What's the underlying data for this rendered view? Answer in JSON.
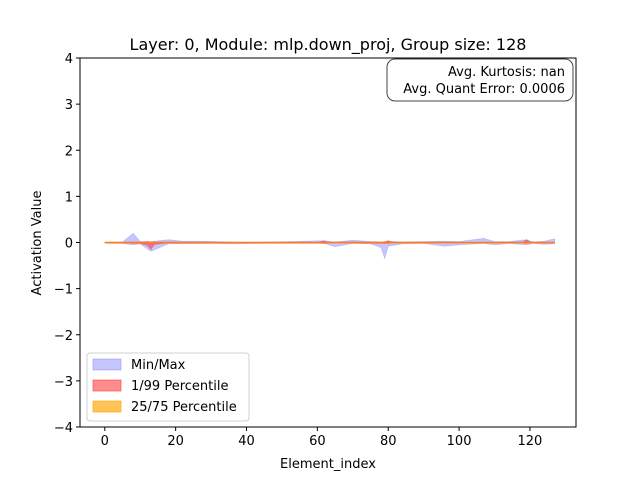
{
  "chart_data": {
    "type": "area",
    "title": "Layer: 0, Module: mlp.down_proj,  Group size: 128",
    "xlabel": "Element_index",
    "ylabel": "Activation Value",
    "xlim": [
      -7,
      133
    ],
    "ylim": [
      -4,
      4
    ],
    "xticks": [
      0,
      20,
      40,
      60,
      80,
      100,
      120
    ],
    "yticks": [
      4,
      3,
      2,
      1,
      0,
      -1,
      -2,
      -3,
      -4
    ],
    "ytick_labels": [
      "4",
      "3",
      "2",
      "1",
      "0",
      "−1",
      "−2",
      "−3",
      "−4"
    ],
    "grid": false,
    "legend_position": "lower-left",
    "annotation": {
      "position": "top-right",
      "lines": [
        "Avg. Kurtosis: nan",
        "Avg. Quant Error: 0.0006"
      ]
    },
    "bands": [
      {
        "name": "Min/Max",
        "color": "#8080ff",
        "opacity": 0.45,
        "x": [
          0,
          2,
          5,
          8,
          10,
          13,
          18,
          22,
          28,
          36,
          45,
          52,
          62,
          65,
          70,
          75,
          78,
          79,
          80,
          84,
          90,
          96,
          100,
          107,
          110,
          114,
          119,
          121,
          124,
          127
        ],
        "upper": [
          0,
          0.01,
          0.01,
          0.2,
          0.02,
          0.02,
          0.06,
          0.03,
          0.03,
          0.01,
          0.01,
          0.02,
          0.04,
          0.01,
          0.05,
          0.02,
          0.01,
          0.02,
          0.03,
          0.01,
          0.02,
          0.03,
          0.02,
          0.09,
          0.02,
          0.02,
          0.06,
          0.01,
          0.03,
          0.08
        ],
        "lower": [
          -0.01,
          -0.02,
          -0.02,
          -0.05,
          -0.03,
          -0.19,
          -0.03,
          -0.03,
          -0.02,
          -0.03,
          -0.02,
          -0.02,
          -0.02,
          -0.09,
          -0.02,
          -0.03,
          -0.11,
          -0.35,
          -0.08,
          -0.03,
          -0.02,
          -0.08,
          -0.05,
          -0.02,
          -0.05,
          -0.02,
          -0.05,
          -0.02,
          -0.04,
          -0.03
        ]
      },
      {
        "name": "1/99 Percentile",
        "color": "#ff4040",
        "opacity": 0.6,
        "x": [
          0,
          5,
          10,
          12,
          13,
          14,
          18,
          30,
          45,
          60,
          62,
          63,
          70,
          79,
          80,
          81,
          90,
          100,
          110,
          118,
          119,
          120,
          127
        ],
        "upper": [
          0.005,
          0.005,
          0.01,
          0.02,
          0.01,
          0.01,
          0.01,
          0.005,
          0.005,
          0.005,
          0.03,
          0.005,
          0.01,
          0.01,
          0.04,
          0.01,
          0.005,
          0.005,
          0.005,
          0.01,
          0.06,
          0.01,
          0.005
        ],
        "lower": [
          -0.01,
          -0.01,
          -0.02,
          -0.06,
          -0.15,
          -0.04,
          -0.01,
          -0.01,
          -0.01,
          -0.01,
          -0.02,
          -0.01,
          -0.01,
          -0.02,
          -0.02,
          -0.01,
          -0.01,
          -0.01,
          -0.01,
          -0.01,
          -0.02,
          -0.01,
          -0.01
        ]
      },
      {
        "name": "25/75 Percentile",
        "color": "#ffa500",
        "opacity": 0.65,
        "x": [
          0,
          20,
          40,
          60,
          80,
          100,
          120,
          127
        ],
        "upper": [
          0.004,
          0.004,
          0.004,
          0.004,
          0.004,
          0.004,
          0.004,
          0.004
        ],
        "lower": [
          -0.004,
          -0.004,
          -0.004,
          -0.004,
          -0.004,
          -0.004,
          -0.004,
          -0.004
        ]
      }
    ],
    "median_line": {
      "color": "#ff7f0e",
      "x": [
        0,
        127
      ],
      "y": [
        0,
        0
      ]
    }
  }
}
